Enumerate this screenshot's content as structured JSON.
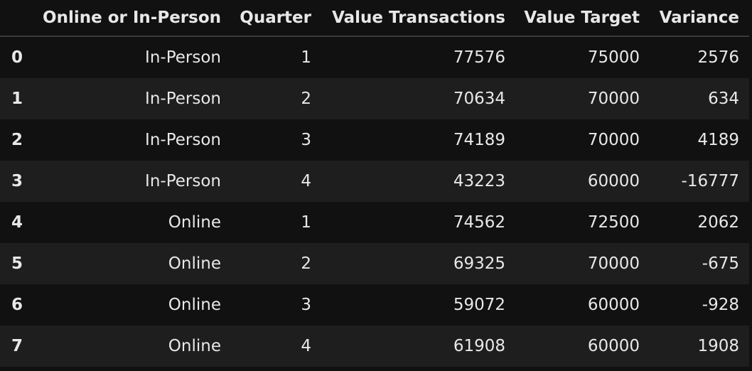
{
  "table": {
    "columns": [
      "Online or In-Person",
      "Quarter",
      "Value Transactions",
      "Value Target",
      "Variance"
    ],
    "index": [
      0,
      1,
      2,
      3,
      4,
      5,
      6,
      7
    ],
    "rows": [
      [
        "In-Person",
        1,
        77576,
        75000,
        2576
      ],
      [
        "In-Person",
        2,
        70634,
        70000,
        634
      ],
      [
        "In-Person",
        3,
        74189,
        70000,
        4189
      ],
      [
        "In-Person",
        4,
        43223,
        60000,
        -16777
      ],
      [
        "Online",
        1,
        74562,
        72500,
        2062
      ],
      [
        "Online",
        2,
        69325,
        70000,
        -675
      ],
      [
        "Online",
        3,
        59072,
        60000,
        -928
      ],
      [
        "Online",
        4,
        61908,
        60000,
        1908
      ]
    ]
  }
}
